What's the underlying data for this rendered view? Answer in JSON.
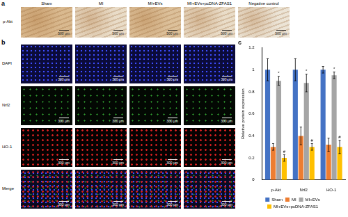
{
  "figure": {
    "panel_a": {
      "label": "a",
      "row_label": "p-Akt",
      "columns": [
        "Sham",
        "MI",
        "MI+EVs",
        "MI+EVs+pcDNA-ZFAS1",
        "Negative control"
      ],
      "scale_bar": "500 μm"
    },
    "panel_b": {
      "label": "b",
      "rows": [
        "DAPI",
        "Nrf2",
        "HO-1",
        "Merge"
      ],
      "scale_bar": "300 μm"
    },
    "panel_c": {
      "label": "c"
    }
  },
  "chart_data": {
    "type": "bar",
    "categories": [
      "p-Akt",
      "Nrf2",
      "HO-1"
    ],
    "y_label": "Relative protein expression",
    "ylim": [
      0,
      1.2
    ],
    "yticks": [
      0,
      0.2,
      0.4,
      0.6,
      0.8,
      1,
      1.2
    ],
    "grid": false,
    "legend": "bottom",
    "series": [
      {
        "name": "Sham",
        "color": "#4472c4",
        "values": [
          1.0,
          1.0,
          1.0
        ],
        "error": [
          0.1,
          0.1,
          0.03
        ]
      },
      {
        "name": "MI",
        "color": "#ed7d31",
        "values": [
          0.3,
          0.4,
          0.32
        ],
        "error": [
          0.03,
          0.08,
          0.06
        ]
      },
      {
        "name": "MI+EVs",
        "color": "#a5a5a5",
        "values": [
          0.9,
          0.88,
          0.95
        ],
        "error": [
          0.04,
          0.08,
          0.03
        ],
        "significance": [
          "*",
          "*",
          "*"
        ]
      },
      {
        "name": "MI+EVs+pcDNA-ZFAS1",
        "color": "#ffc000",
        "values": [
          0.2,
          0.3,
          0.3
        ],
        "error": [
          0.03,
          0.03,
          0.06
        ],
        "significance": [
          "#",
          "#",
          "#"
        ]
      }
    ]
  }
}
